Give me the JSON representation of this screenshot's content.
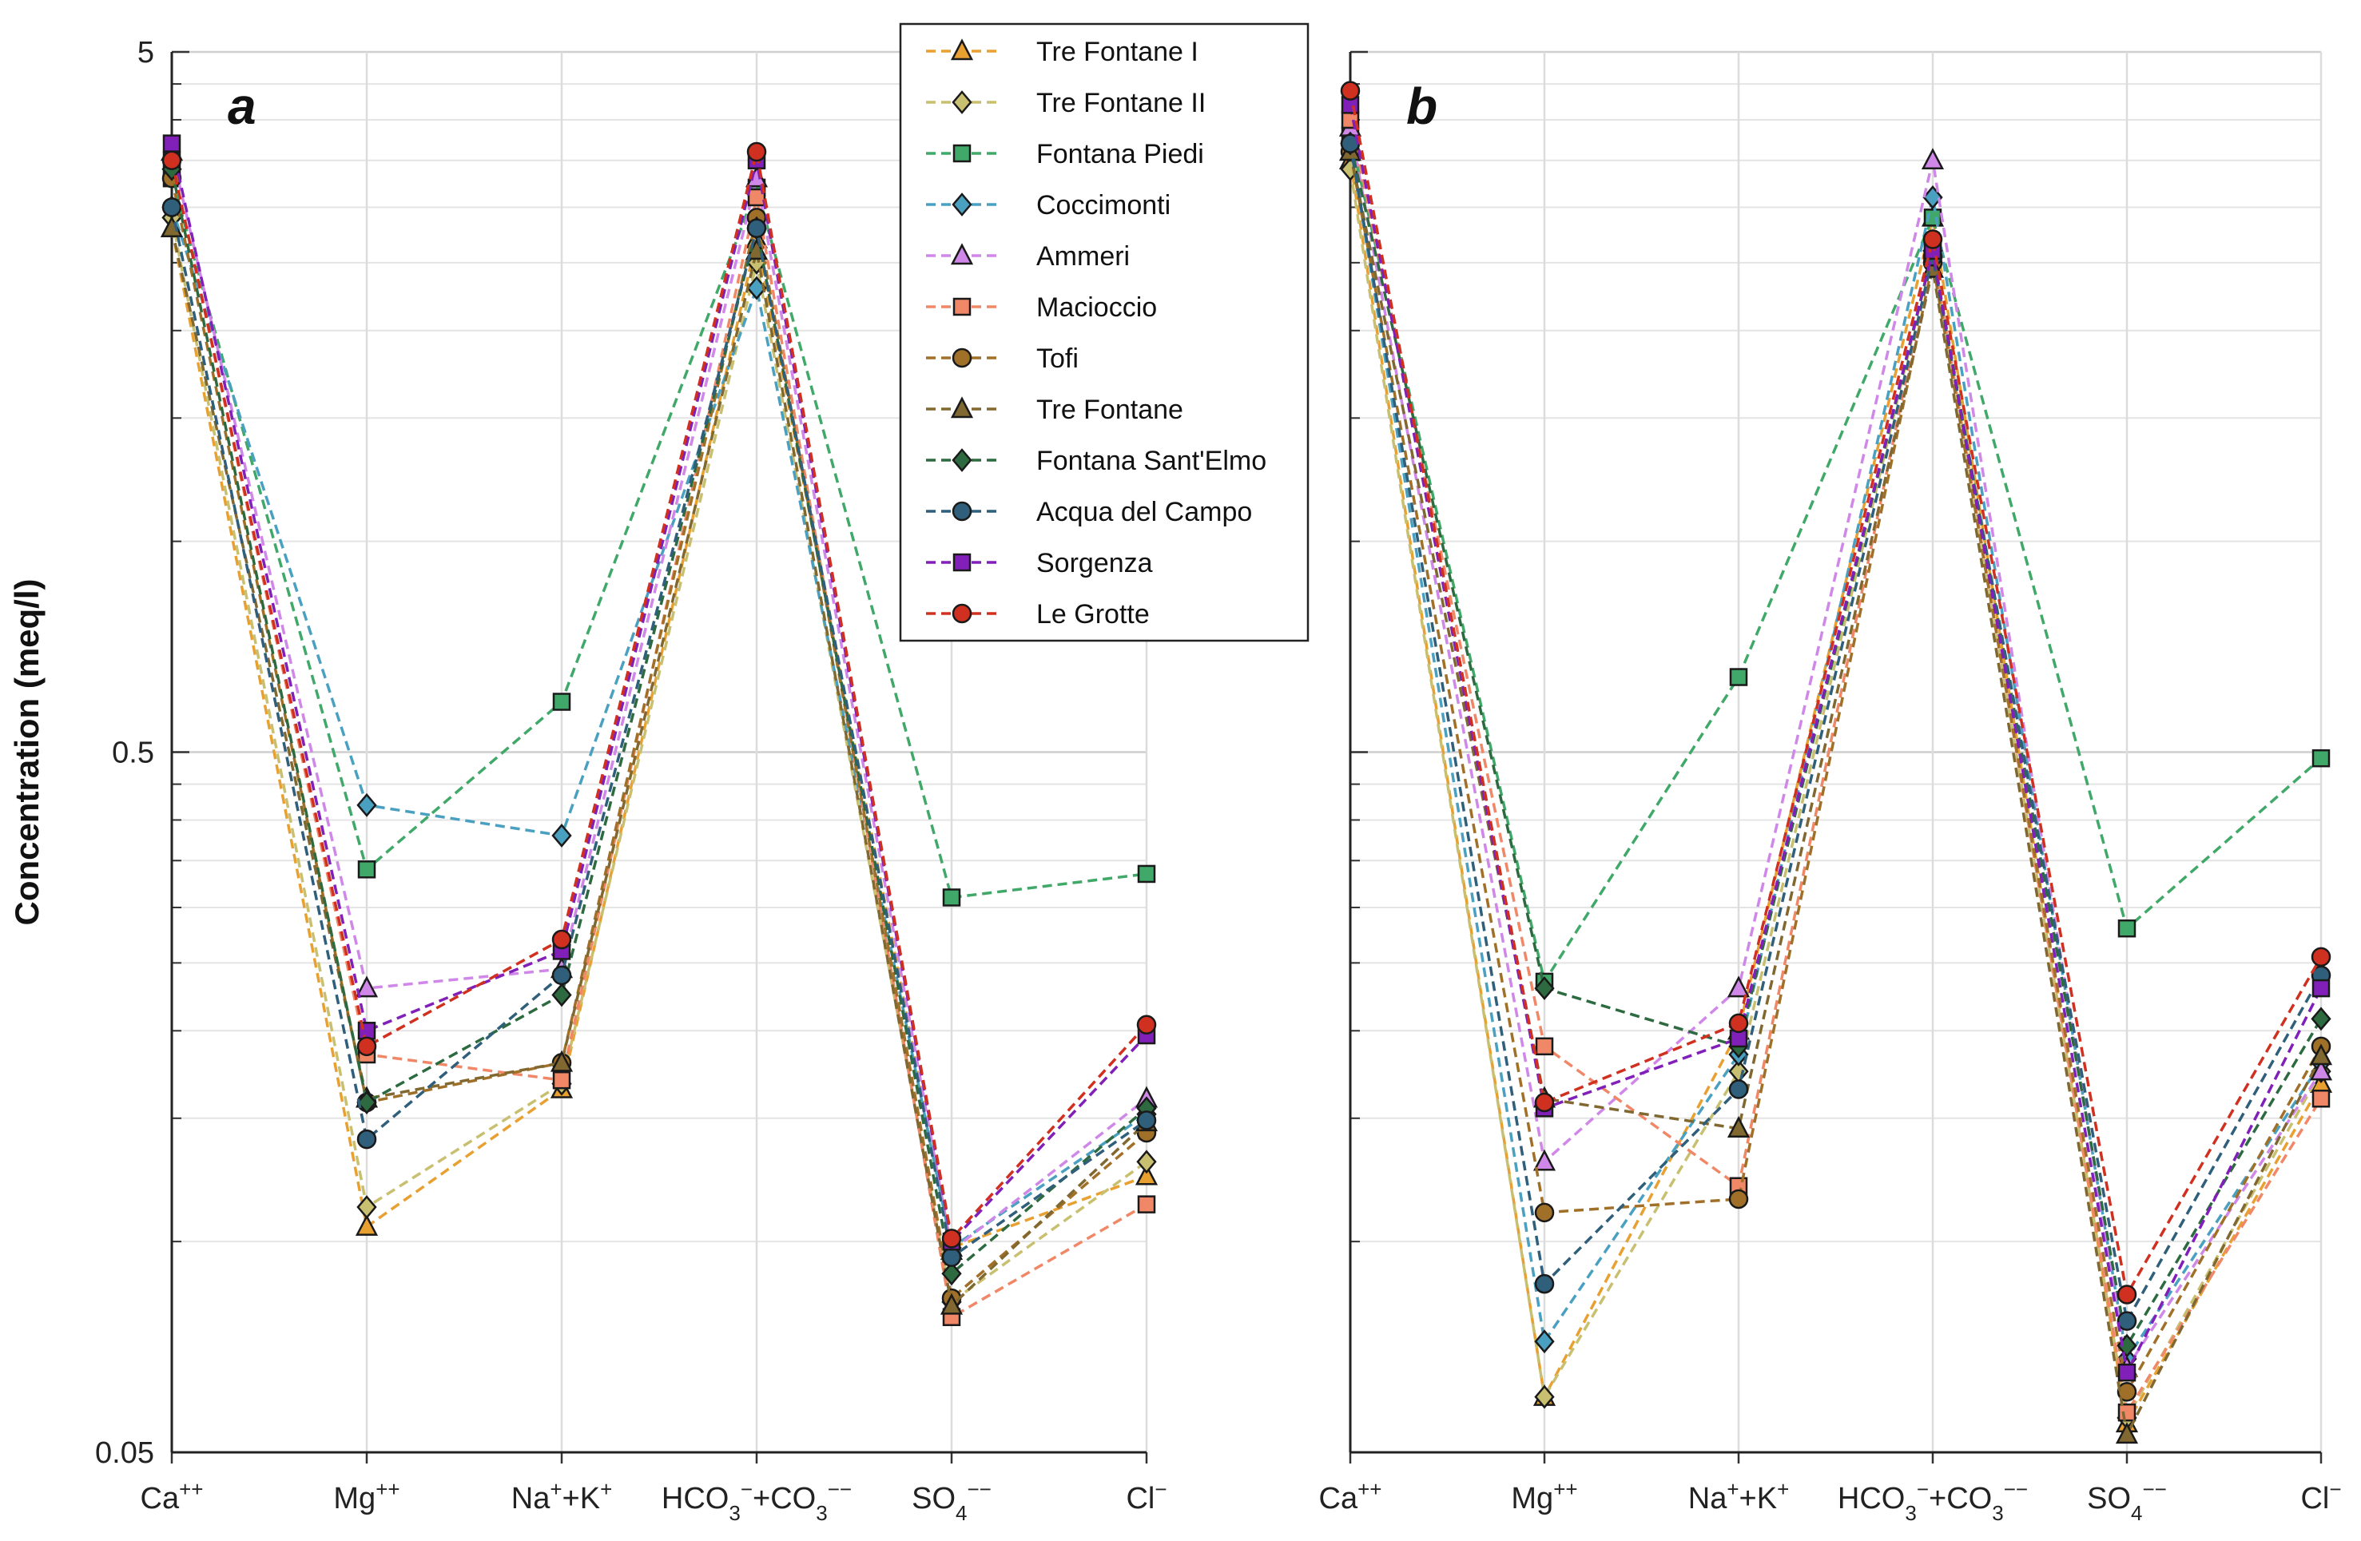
{
  "chart_data": {
    "type": "line",
    "ylabel": "Concentration (meq/l)",
    "yscale": "log",
    "ylim": [
      0.05,
      5
    ],
    "yticks": [
      "0.05",
      "0.5",
      "5"
    ],
    "categories": [
      "Ca",
      "Mg",
      "Na+K",
      "HCO3+CO3",
      "SO4",
      "Cl"
    ],
    "legend_position": "top-center",
    "series": [
      {
        "name": "Tre Fontane I",
        "color": "#e8a030",
        "marker": "triangle"
      },
      {
        "name": "Tre Fontane II",
        "color": "#c8c070",
        "marker": "diamond"
      },
      {
        "name": "Fontana Piedi",
        "color": "#40a868",
        "marker": "square"
      },
      {
        "name": "Coccimonti",
        "color": "#4aa0c0",
        "marker": "diamond"
      },
      {
        "name": "Ammeri",
        "color": "#d088e8",
        "marker": "triangle"
      },
      {
        "name": "Macioccio",
        "color": "#f08868",
        "marker": "square"
      },
      {
        "name": "Tofi",
        "color": "#a07028",
        "marker": "circle"
      },
      {
        "name": "Tre Fontane",
        "color": "#806830",
        "marker": "triangle"
      },
      {
        "name": "Fontana Sant'Elmo",
        "color": "#2e6a40",
        "marker": "diamond"
      },
      {
        "name": "Acqua del Campo",
        "color": "#2f5f7a",
        "marker": "circle"
      },
      {
        "name": "Sorgenza",
        "color": "#8020b8",
        "marker": "square"
      },
      {
        "name": "Le Grotte",
        "color": "#d03020",
        "marker": "circle"
      }
    ],
    "panels": [
      {
        "label": "a",
        "data": {
          "Tre Fontane I": [
            2.8,
            0.105,
            0.165,
            2.7,
            0.098,
            0.124
          ],
          "Tre Fontane II": [
            2.9,
            0.112,
            0.168,
            2.5,
            0.082,
            0.13
          ],
          "Fontana Piedi": [
            3.3,
            0.34,
            0.59,
            3.2,
            0.31,
            0.335
          ],
          "Coccimonti": [
            3.0,
            0.42,
            0.38,
            2.3,
            0.098,
            0.152
          ],
          "Ammeri": [
            3.6,
            0.23,
            0.245,
            3.3,
            0.097,
            0.16
          ],
          "Macioccio": [
            3.5,
            0.185,
            0.17,
            3.1,
            0.078,
            0.113
          ],
          "Tofi": [
            3.3,
            0.158,
            0.18,
            2.9,
            0.083,
            0.143
          ],
          "Tre Fontane": [
            2.8,
            0.16,
            0.18,
            2.6,
            0.081,
            0.148
          ],
          "Fontana Sant'Elmo": [
            3.4,
            0.158,
            0.225,
            2.8,
            0.09,
            0.155
          ],
          "Acqua del Campo": [
            3.0,
            0.14,
            0.24,
            2.8,
            0.095,
            0.149
          ],
          "Sorgenza": [
            3.7,
            0.2,
            0.26,
            3.5,
            0.1,
            0.197
          ],
          "Le Grotte": [
            3.5,
            0.19,
            0.27,
            3.6,
            0.101,
            0.204
          ]
        }
      },
      {
        "label": "b",
        "data": {
          "Tre Fontane I": [
            3.5,
            0.06,
            0.2,
            2.9,
            0.055,
            0.168
          ],
          "Tre Fontane II": [
            3.4,
            0.06,
            0.175,
            2.6,
            0.056,
            0.175
          ],
          "Fontana Piedi": [
            3.8,
            0.235,
            0.64,
            2.9,
            0.28,
            0.49
          ],
          "Coccimonti": [
            3.7,
            0.072,
            0.185,
            3.1,
            0.068,
            0.18
          ],
          "Ammeri": [
            3.9,
            0.13,
            0.23,
            3.5,
            0.066,
            0.175
          ],
          "Macioccio": [
            4.0,
            0.19,
            0.12,
            2.6,
            0.057,
            0.16
          ],
          "Tofi": [
            3.6,
            0.11,
            0.115,
            2.5,
            0.061,
            0.19
          ],
          "Tre Fontane": [
            3.6,
            0.16,
            0.145,
            2.45,
            0.053,
            0.184
          ],
          "Fontana Sant'Elmo": [
            3.7,
            0.23,
            0.19,
            2.6,
            0.071,
            0.208
          ],
          "Acqua del Campo": [
            3.7,
            0.087,
            0.165,
            2.55,
            0.077,
            0.24
          ],
          "Sorgenza": [
            4.2,
            0.155,
            0.195,
            2.6,
            0.065,
            0.23
          ],
          "Le Grotte": [
            4.4,
            0.158,
            0.205,
            2.7,
            0.084,
            0.255
          ]
        }
      }
    ]
  },
  "category_labels": [
    {
      "base": "Ca",
      "sup": "++"
    },
    {
      "base": "Mg",
      "sup": "++"
    },
    {
      "base": "Na",
      "sup": "+",
      "base2": "+K",
      "sup2": "+"
    },
    {
      "base": "HCO",
      "sub": "3",
      "sup": "−",
      "base2": "+CO",
      "sub2": "3",
      "sup2": "−−"
    },
    {
      "base": "SO",
      "sub": "4",
      "sup": "−−"
    },
    {
      "base": "Cl",
      "sup": "−"
    }
  ]
}
